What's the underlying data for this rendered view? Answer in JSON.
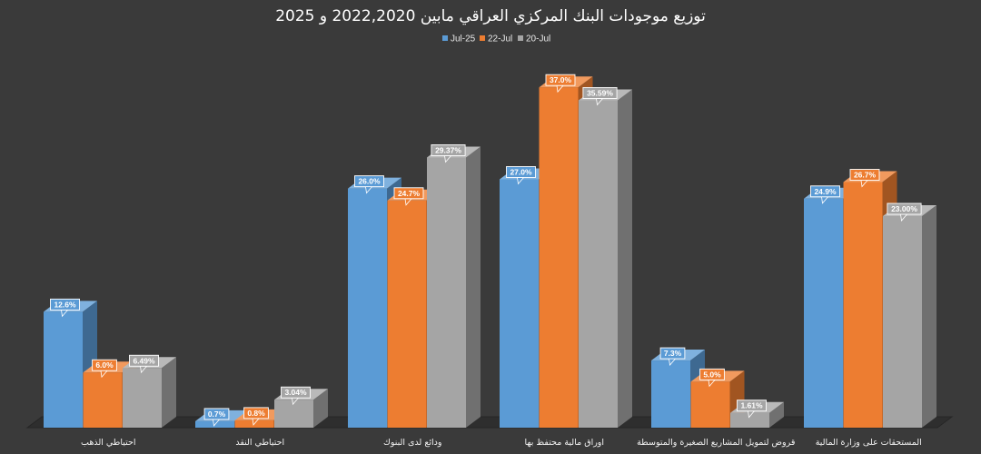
{
  "chart_data": {
    "type": "bar",
    "title": "توزيع موجودات البنك المركزي العراقي مابين 2022,2020 و 2025",
    "categories": [
      "احتياطي الذهب",
      "احتياطي النقد",
      "ودائع لدى البنوك",
      "اوراق مالية محتفظ بها",
      "قروض لتمويل المشاريع الصغيرة والمتوسطة",
      "المستحقات على وزارة المالية"
    ],
    "series": [
      {
        "name": "Jul-25",
        "values": [
          12.6,
          0.7,
          26.0,
          27.0,
          7.3,
          24.9
        ],
        "labels": [
          "12.6%",
          "0.7%",
          "26.0%",
          "27.0%",
          "7.3%",
          "24.9%"
        ],
        "color": "#5b9bd5"
      },
      {
        "name": "22-Jul",
        "values": [
          6.0,
          0.8,
          24.7,
          37.0,
          5.0,
          26.7
        ],
        "labels": [
          "6.0%",
          "0.8%",
          "24.7%",
          "37.0%",
          "5.0%",
          "26.7%"
        ],
        "color": "#ed7d31"
      },
      {
        "name": "20-Jul",
        "values": [
          6.49,
          3.04,
          29.37,
          35.59,
          1.61,
          23.0
        ],
        "labels": [
          "6.49%",
          "3.04%",
          "29.37%",
          "35.59%",
          "1.61%",
          "23.00%"
        ],
        "color": "#a5a5a5"
      }
    ],
    "ylim": [
      0,
      40
    ],
    "grid": false,
    "legend": "top-center",
    "style": "3d-clustered-column"
  }
}
